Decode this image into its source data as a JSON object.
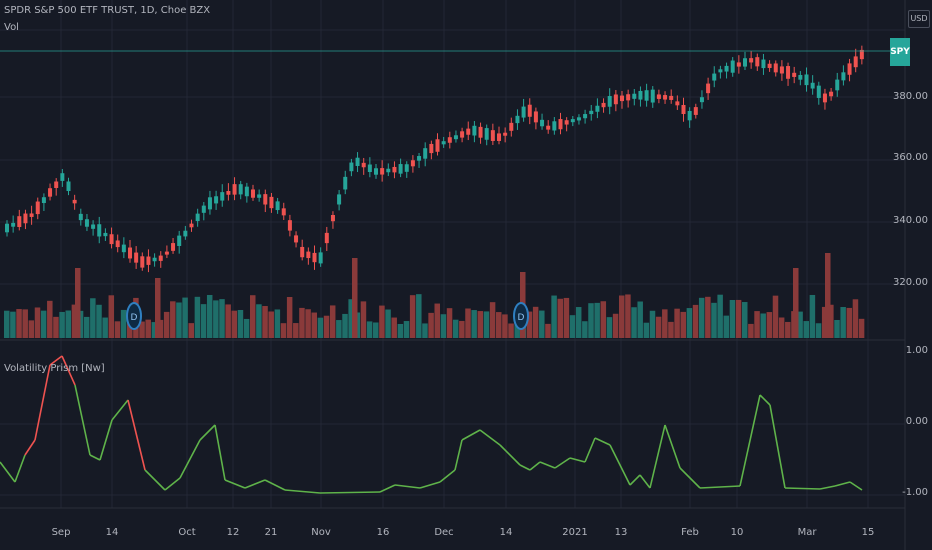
{
  "header": {
    "symbol_title": "SPDR S&P 500 ETF TRUST, 1D, Choe BZX",
    "volume_label": "Vol",
    "currency": "USD",
    "symbol_tag": "SPY"
  },
  "indicator": {
    "title": "Volatility Prism [Nw]"
  },
  "price_axis": {
    "ticks": [
      "380.00",
      "360.00",
      "340.00",
      "320.00"
    ]
  },
  "indicator_axis": {
    "ticks": [
      "1.00",
      "0.00",
      "-1.00"
    ]
  },
  "time_axis": {
    "labels": [
      "Sep",
      "14",
      "Oct",
      "12",
      "21",
      "Nov",
      "16",
      "Dec",
      "14",
      "2021",
      "13",
      "Feb",
      "10",
      "Mar",
      "15"
    ]
  },
  "colors": {
    "up": "#26a69a",
    "down": "#ef5350",
    "up_volume": "#1f6f6a",
    "down_volume": "#8a3a3a",
    "indicator_line": "#5fb34a",
    "indicator_line_high": "#ef5350",
    "grid": "#232735",
    "background": "#161a25"
  },
  "chart_data": {
    "type": "candlestick",
    "indicator_series": {
      "name": "Volatility Prism [Nw]",
      "ylim": [
        -1,
        1
      ]
    }
  }
}
